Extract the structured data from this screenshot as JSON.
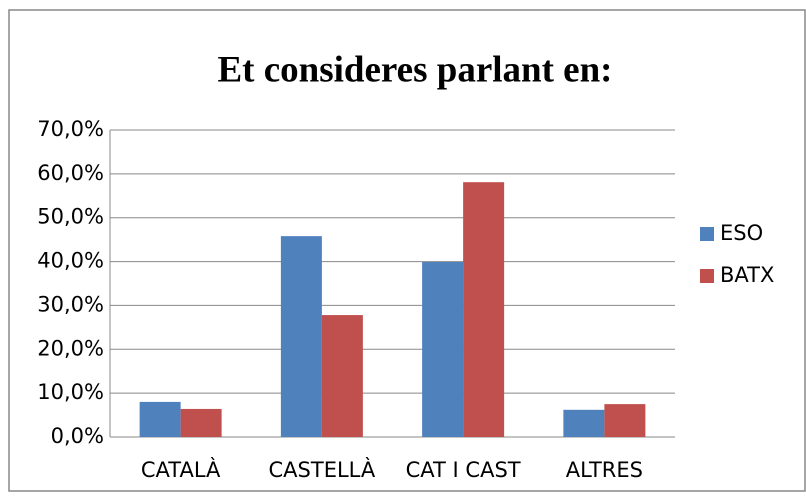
{
  "chart_data": {
    "type": "bar",
    "title": "Et consideres parlant en:",
    "categories": [
      "CATALÀ",
      "CASTELLÀ",
      "CAT I CAST",
      "ALTRES"
    ],
    "series": [
      {
        "name": "ESO",
        "color": "#4f81bd",
        "values": [
          8.0,
          45.8,
          39.9,
          6.2
        ]
      },
      {
        "name": "BATX",
        "color": "#c0504d",
        "values": [
          6.4,
          27.8,
          58.1,
          7.5
        ]
      }
    ],
    "ylim": [
      0,
      70
    ],
    "yticks": [
      {
        "value": 0,
        "label": "0,0%"
      },
      {
        "value": 10,
        "label": "10,0%"
      },
      {
        "value": 20,
        "label": "20,0%"
      },
      {
        "value": 30,
        "label": "30,0%"
      },
      {
        "value": 40,
        "label": "40,0%"
      },
      {
        "value": 50,
        "label": "50,0%"
      },
      {
        "value": 60,
        "label": "60,0%"
      },
      {
        "value": 70,
        "label": "70,0%"
      }
    ],
    "grid": true,
    "legend": "right"
  }
}
